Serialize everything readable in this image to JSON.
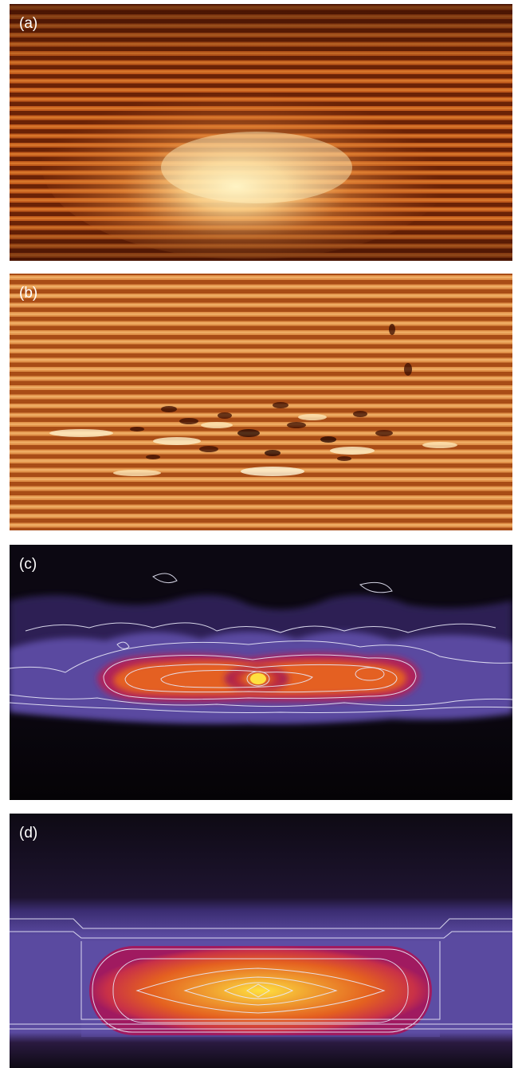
{
  "panels": [
    {
      "id": "a",
      "label": "(a)",
      "image": "stm-topography-raw"
    },
    {
      "id": "b",
      "label": "(b)",
      "image": "stm-topography-filtered"
    },
    {
      "id": "c",
      "label": "(c)",
      "image": "measured-intensity-contour-map"
    },
    {
      "id": "d",
      "label": "(d)",
      "image": "simulated-intensity-contour-map"
    }
  ],
  "colors": {
    "copper_dark": "#5a1a04",
    "copper_mid": "#c2601a",
    "copper_light": "#fff0b0",
    "background_dark": "#0a0610",
    "purple": "#5a4aa0",
    "magenta": "#b0205a",
    "orange": "#e46020",
    "yellow": "#ffe040",
    "contour": "#e8e8f8"
  }
}
